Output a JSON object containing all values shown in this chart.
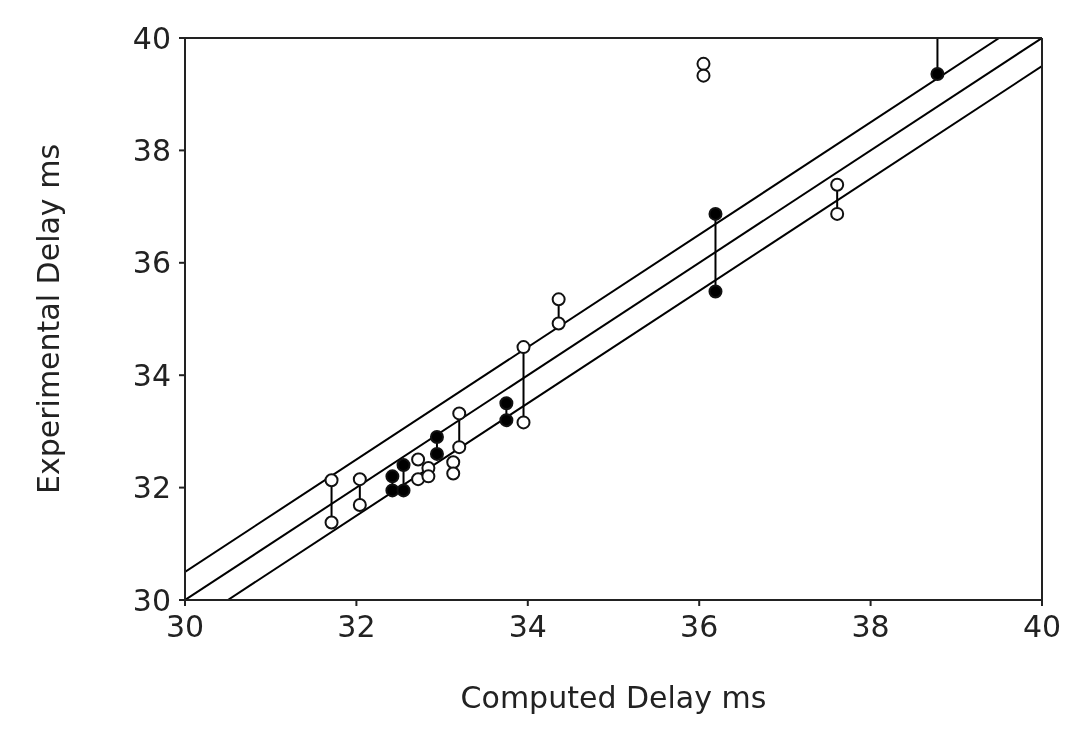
{
  "chart_data": {
    "type": "scatter",
    "xlabel": "Computed Delay     ms",
    "ylabel": "Experimental Delay  ms",
    "xlim": [
      30,
      40
    ],
    "ylim": [
      30,
      40
    ],
    "xticks": [
      30,
      32,
      34,
      36,
      38,
      40
    ],
    "yticks": [
      30,
      32,
      34,
      36,
      38,
      40
    ],
    "grid": false,
    "series": [
      {
        "type": "line",
        "marker": "none",
        "color": "#000000",
        "x": [
          30,
          39.5
        ],
        "values": [
          30.5,
          40
        ]
      },
      {
        "type": "line",
        "marker": "none",
        "color": "#000000",
        "x": [
          30,
          40
        ],
        "values": [
          30,
          40
        ]
      },
      {
        "type": "line",
        "marker": "none",
        "color": "#000000",
        "x": [
          30.5,
          40
        ],
        "values": [
          30,
          39.5
        ]
      },
      {
        "type": "line",
        "marker": "none",
        "color": "#000000",
        "x": [
          31.71,
          31.71,
          null,
          32.04,
          32.04,
          null,
          32.42,
          32.42,
          null,
          32.55,
          32.55,
          null,
          32.94,
          32.94,
          null,
          33.2,
          33.2,
          null,
          33.75,
          33.75,
          null,
          33.95,
          33.95,
          null,
          34.36,
          34.36,
          null,
          36.19,
          36.19,
          null,
          37.61,
          37.61,
          null,
          38.78,
          38.78
        ],
        "values": [
          32.13,
          31.38,
          null,
          32.15,
          31.69,
          null,
          32.2,
          31.95,
          null,
          32.4,
          31.95,
          null,
          32.9,
          32.6,
          null,
          33.32,
          32.72,
          null,
          33.5,
          33.2,
          null,
          34.5,
          33.16,
          null,
          35.35,
          34.92,
          null,
          36.87,
          35.49,
          null,
          37.39,
          36.87,
          null,
          39.36,
          40
        ]
      },
      {
        "marker": "circle",
        "color": "#ffffff",
        "x": [
          31.71,
          31.71,
          32.04,
          32.04,
          32.72,
          32.72,
          32.84,
          32.84,
          33.13,
          33.13,
          33.2,
          33.2,
          33.95,
          33.95,
          34.36,
          34.36,
          36.05,
          36.05,
          37.61,
          37.61
        ],
        "values": [
          32.13,
          31.38,
          32.15,
          31.69,
          32.5,
          32.15,
          32.35,
          32.2,
          32.45,
          32.25,
          33.32,
          32.72,
          34.5,
          33.16,
          35.35,
          34.92,
          39.54,
          39.33,
          37.39,
          36.87
        ]
      },
      {
        "marker": "circle",
        "color": "#000000",
        "x": [
          32.42,
          32.42,
          32.55,
          32.55,
          32.94,
          32.94,
          33.75,
          33.75,
          36.19,
          36.19,
          38.78
        ],
        "values": [
          32.2,
          31.95,
          32.4,
          31.95,
          32.9,
          32.6,
          33.5,
          33.2,
          36.87,
          35.49,
          39.36
        ]
      }
    ]
  }
}
